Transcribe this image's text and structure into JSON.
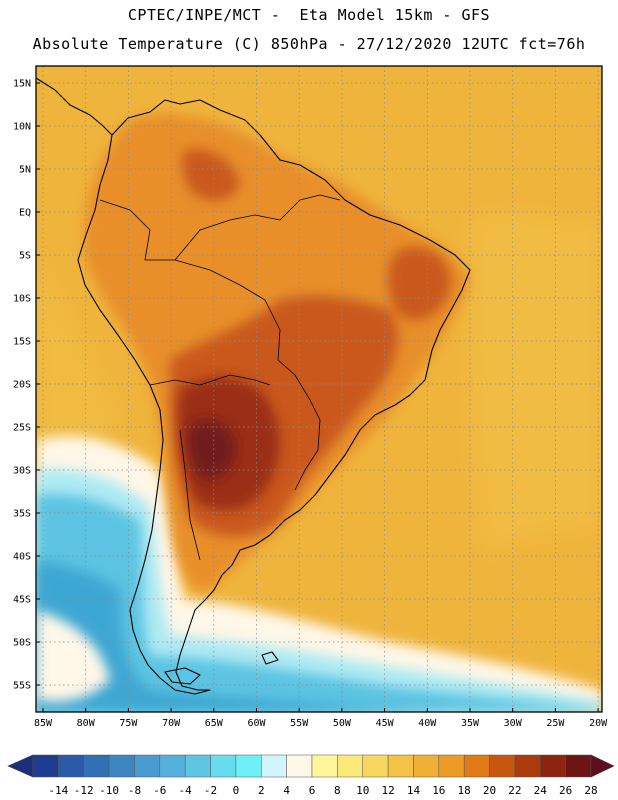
{
  "header": {
    "title_line1": "CPTEC/INPE/MCT -  Eta Model 15km - GFS",
    "title_line2": "Absolute Temperature (C) 850hPa - 27/12/2020 12UTC fct=76h"
  },
  "map": {
    "lat_labels": [
      "15N",
      "10N",
      "5N",
      "EQ",
      "5S",
      "10S",
      "15S",
      "20S",
      "25S",
      "30S",
      "35S",
      "40S",
      "45S",
      "50S",
      "55S"
    ],
    "lon_labels": [
      "85W",
      "80W",
      "75W",
      "70W",
      "65W",
      "60W",
      "55W",
      "50W",
      "45W",
      "40W",
      "35W",
      "30W",
      "25W",
      "20W"
    ]
  },
  "colorbar": {
    "tick_labels": [
      "-14",
      "-12",
      "-10",
      "-8",
      "-6",
      "-4",
      "-2",
      "0",
      "2",
      "4",
      "6",
      "8",
      "10",
      "12",
      "14",
      "16",
      "18",
      "20",
      "22",
      "24",
      "26",
      "28"
    ],
    "colors": [
      "#1f3d8f",
      "#2a5aa8",
      "#336fb3",
      "#3d86c2",
      "#4a9ccf",
      "#56b0dc",
      "#5ec5e3",
      "#66dced",
      "#6ff0f6",
      "#d2f4fb",
      "#fff7e8",
      "#fff59a",
      "#fbe97a",
      "#f7d75f",
      "#f3c349",
      "#f0b035",
      "#ec9c25",
      "#e07a16",
      "#c9560f",
      "#ab3a0c",
      "#8c2410",
      "#6f1414"
    ],
    "low_arrow_color": "#1d2f7a",
    "high_arrow_color": "#5e0c1f"
  },
  "palette": {
    "ocean_base": "#efb43c",
    "land_warm": "#e88f2a",
    "land_hot": "#c9581a",
    "land_very_hot": "#9a2e12",
    "core": "#6f1a1a",
    "cold_light": "#fff7e8",
    "cold_cyan": "#aeeaf3",
    "cold_blue": "#5cc4e2",
    "cold_deep": "#3da7d3"
  }
}
